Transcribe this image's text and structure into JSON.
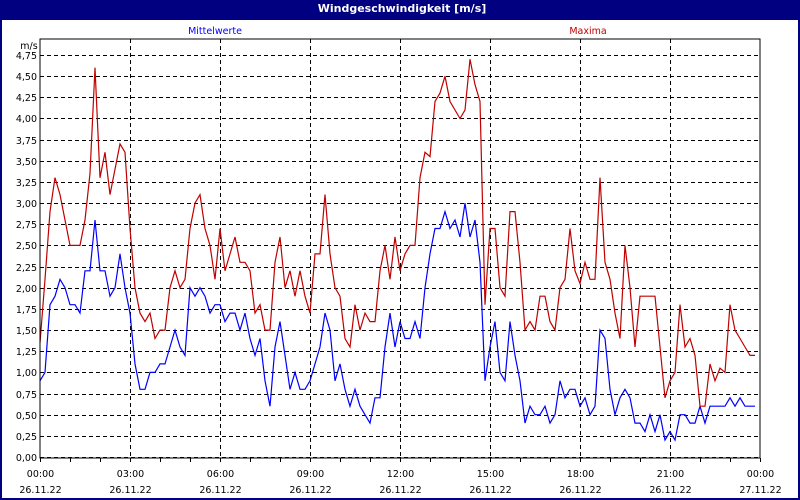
{
  "title": "Windgeschwindigkeit [m/s]",
  "colors": {
    "titlebar": "#000080",
    "mittelwerte": "#0000ff",
    "maxima": "#c00000"
  },
  "chart_data": {
    "type": "line",
    "title": "Windgeschwindigkeit [m/s]",
    "ylabel": "m/s",
    "ylim": [
      0,
      4.75
    ],
    "yticks": [
      "0,00",
      "0,25",
      "0,50",
      "0,75",
      "1,00",
      "1,25",
      "1,50",
      "1,75",
      "2,00",
      "2,25",
      "2,50",
      "2,75",
      "3,00",
      "3,25",
      "3,50",
      "3,75",
      "4,00",
      "4,25",
      "4,50",
      "4,75"
    ],
    "xlim": [
      "26.11.22 00:00",
      "27.11.22 00:00"
    ],
    "xticks": [
      {
        "time": "00:00",
        "date": "26.11.22"
      },
      {
        "time": "03:00",
        "date": "26.11.22"
      },
      {
        "time": "06:00",
        "date": "26.11.22"
      },
      {
        "time": "09:00",
        "date": "26.11.22"
      },
      {
        "time": "12:00",
        "date": "26.11.22"
      },
      {
        "time": "15:00",
        "date": "26.11.22"
      },
      {
        "time": "18:00",
        "date": "26.11.22"
      },
      {
        "time": "21:00",
        "date": "26.11.22"
      },
      {
        "time": "00:00",
        "date": "27.11.22"
      }
    ],
    "x_interval_minutes": 10,
    "grid": true,
    "legend": "top",
    "series": [
      {
        "name": "Mittelwerte",
        "color": "#0000ff",
        "values": [
          0.9,
          1.0,
          1.8,
          1.9,
          2.1,
          2.0,
          1.8,
          1.8,
          1.7,
          2.2,
          2.2,
          2.8,
          2.2,
          2.2,
          1.9,
          2.0,
          2.4,
          2.0,
          1.7,
          1.1,
          0.8,
          0.8,
          1.0,
          1.0,
          1.1,
          1.1,
          1.3,
          1.5,
          1.3,
          1.2,
          2.0,
          1.9,
          2.0,
          1.9,
          1.7,
          1.8,
          1.8,
          1.6,
          1.7,
          1.7,
          1.5,
          1.7,
          1.4,
          1.2,
          1.4,
          0.9,
          0.6,
          1.3,
          1.6,
          1.2,
          0.8,
          1.0,
          0.8,
          0.8,
          0.9,
          1.1,
          1.3,
          1.7,
          1.5,
          0.9,
          1.1,
          0.8,
          0.6,
          0.8,
          0.6,
          0.5,
          0.4,
          0.7,
          0.7,
          1.3,
          1.7,
          1.3,
          1.6,
          1.4,
          1.4,
          1.6,
          1.4,
          2.0,
          2.4,
          2.7,
          2.7,
          2.9,
          2.7,
          2.8,
          2.6,
          3.0,
          2.6,
          2.8,
          2.3,
          0.9,
          1.3,
          1.6,
          1.0,
          0.9,
          1.6,
          1.2,
          0.9,
          0.4,
          0.6,
          0.5,
          0.5,
          0.6,
          0.4,
          0.5,
          0.9,
          0.7,
          0.8,
          0.8,
          0.6,
          0.7,
          0.5,
          0.6,
          1.5,
          1.4,
          0.8,
          0.5,
          0.7,
          0.8,
          0.7,
          0.4,
          0.4,
          0.3,
          0.5,
          0.3,
          0.5,
          0.2,
          0.3,
          0.2,
          0.5,
          0.5,
          0.4,
          0.4,
          0.6,
          0.4,
          0.6,
          0.6,
          0.6,
          0.6,
          0.7,
          0.6,
          0.7,
          0.6,
          0.6,
          0.6
        ]
      },
      {
        "name": "Maxima",
        "color": "#c00000",
        "values": [
          1.35,
          2.1,
          2.9,
          3.3,
          3.1,
          2.8,
          2.5,
          2.5,
          2.5,
          2.8,
          3.35,
          4.6,
          3.3,
          3.6,
          3.1,
          3.4,
          3.7,
          3.6,
          2.7,
          2.0,
          1.7,
          1.6,
          1.7,
          1.4,
          1.5,
          1.5,
          2.0,
          2.2,
          2.0,
          2.1,
          2.7,
          3.0,
          3.1,
          2.7,
          2.5,
          2.1,
          2.7,
          2.2,
          2.4,
          2.6,
          2.3,
          2.3,
          2.2,
          1.7,
          1.8,
          1.5,
          1.5,
          2.3,
          2.6,
          2.0,
          2.2,
          1.9,
          2.2,
          1.9,
          1.7,
          2.4,
          2.4,
          3.1,
          2.4,
          2.0,
          1.9,
          1.4,
          1.3,
          1.8,
          1.5,
          1.7,
          1.6,
          1.6,
          2.2,
          2.5,
          2.1,
          2.6,
          2.2,
          2.4,
          2.5,
          2.5,
          3.3,
          3.6,
          3.55,
          4.2,
          4.3,
          4.5,
          4.2,
          4.1,
          4.0,
          4.1,
          4.7,
          4.4,
          4.2,
          1.8,
          2.7,
          2.7,
          2.0,
          1.9,
          2.9,
          2.9,
          2.3,
          1.5,
          1.6,
          1.5,
          1.9,
          1.9,
          1.6,
          1.5,
          2.0,
          2.1,
          2.7,
          2.2,
          2.05,
          2.3,
          2.1,
          2.1,
          3.3,
          2.3,
          2.1,
          1.7,
          1.4,
          2.5,
          2.0,
          1.3,
          1.9,
          1.9,
          1.9,
          1.9,
          1.3,
          0.7,
          0.9,
          1.0,
          1.8,
          1.3,
          1.4,
          1.2,
          0.6,
          0.6,
          1.1,
          0.9,
          1.05,
          1.0,
          1.8,
          1.5,
          1.4,
          1.3,
          1.2,
          1.2
        ]
      }
    ]
  }
}
